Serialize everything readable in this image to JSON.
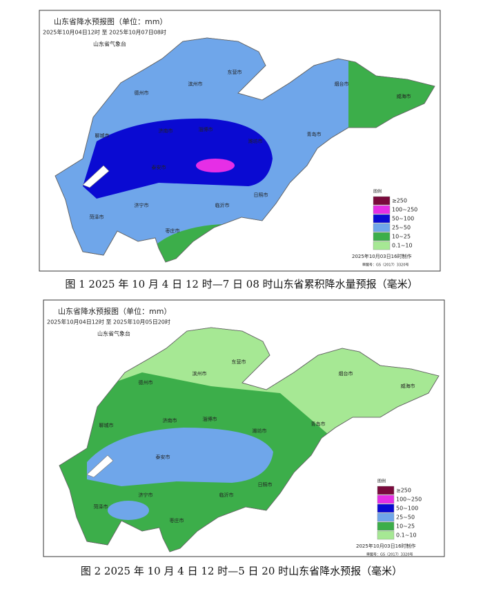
{
  "figures": [
    {
      "map_title": "山东省降水预报图（单位：mm）",
      "time_range": "2025年10月04日12时 至 2025年10月07日08时",
      "issuer": "山东省气象台",
      "cities": [
        "德州市",
        "滨州市",
        "东营市",
        "烟台市",
        "威海市",
        "聊城市",
        "济南市",
        "淄博市",
        "潍坊市",
        "青岛市",
        "泰安市",
        "济宁市",
        "菏泽市",
        "枣庄市",
        "临沂市",
        "日照市"
      ],
      "legend": {
        "title": "图例",
        "items": [
          {
            "label": "≥250",
            "color": "#7a0a3c"
          },
          {
            "label": "100~250",
            "color": "#e62ee6"
          },
          {
            "label": "50~100",
            "color": "#0a0ad2"
          },
          {
            "label": "25~50",
            "color": "#6fa6ea"
          },
          {
            "label": "10~25",
            "color": "#3cae4a"
          },
          {
            "label": "0.1~10",
            "color": "#a6e894"
          }
        ]
      },
      "made": "2025年10月03日16时制作",
      "approval": "审图号：GS（2017）3320号",
      "caption": "图 1 2025 年 10 月 4 日 12 时—7 日 08 时山东省累积降水量预报（毫米）"
    },
    {
      "map_title": "山东省降水预报图（单位：mm）",
      "time_range": "2025年10月04日12时 至 2025年10月05日20时",
      "issuer": "山东省气象台",
      "cities": [
        "德州市",
        "滨州市",
        "东营市",
        "烟台市",
        "威海市",
        "聊城市",
        "济南市",
        "淄博市",
        "潍坊市",
        "青岛市",
        "泰安市",
        "济宁市",
        "菏泽市",
        "枣庄市",
        "临沂市",
        "日照市"
      ],
      "legend": {
        "title": "图例",
        "items": [
          {
            "label": "≥250",
            "color": "#7a0a3c"
          },
          {
            "label": "100~250",
            "color": "#e62ee6"
          },
          {
            "label": "50~100",
            "color": "#0a0ad2"
          },
          {
            "label": "25~50",
            "color": "#6fa6ea"
          },
          {
            "label": "10~25",
            "color": "#3cae4a"
          },
          {
            "label": "0.1~10",
            "color": "#a6e894"
          }
        ]
      },
      "made": "2025年10月03日16时制作",
      "approval": "审图号：GS（2017）3320号",
      "caption": "图 2 2025 年 10 月 4 日 12 时—5 日 20 时山东省降水预报（毫米）"
    }
  ]
}
